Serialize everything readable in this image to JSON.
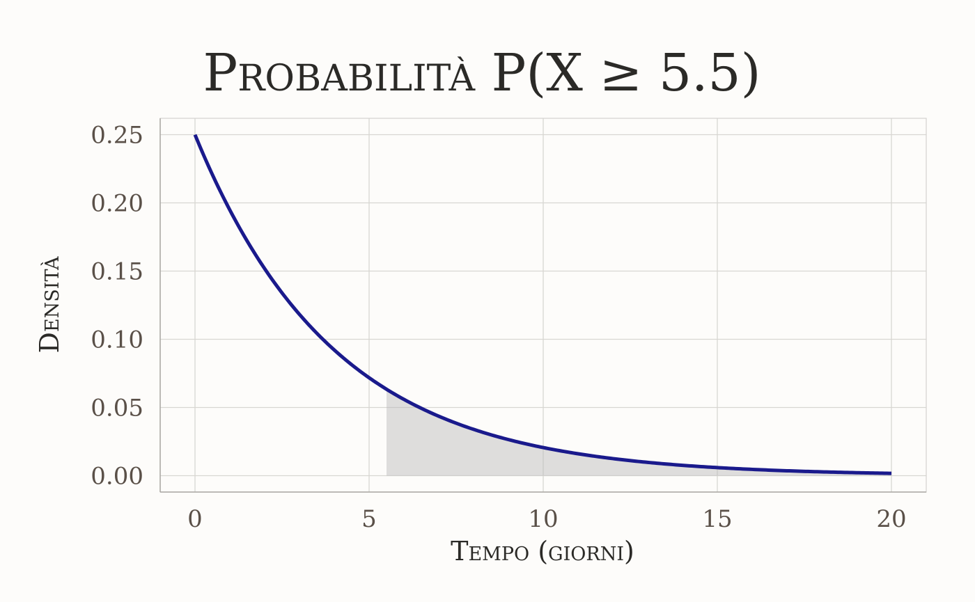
{
  "chart_data": {
    "type": "line",
    "title": "Probabilità P(X ≥ 5.5)",
    "xlabel": "Tempo (giorni)",
    "ylabel": "Densità",
    "xlim": [
      -1,
      21
    ],
    "ylim": [
      -0.012,
      0.262
    ],
    "x_ticks": [
      0,
      5,
      10,
      15,
      20
    ],
    "x_tick_labels": [
      "0",
      "5",
      "10",
      "15",
      "20"
    ],
    "y_ticks": [
      0.0,
      0.05,
      0.1,
      0.15,
      0.2,
      0.25
    ],
    "y_tick_labels": [
      "0.00",
      "0.05",
      "0.10",
      "0.15",
      "0.20",
      "0.25"
    ],
    "grid": true,
    "legend": "none",
    "series": [
      {
        "x": [
          0,
          1,
          2,
          3,
          4,
          5,
          5.5,
          6,
          7,
          8,
          9,
          10,
          11,
          12,
          13,
          14,
          15,
          16,
          17,
          18,
          19,
          20
        ],
        "values": [
          0.25,
          0.195,
          0.152,
          0.118,
          0.092,
          0.0716,
          0.0632,
          0.0558,
          0.0435,
          0.0338,
          0.0263,
          0.0205,
          0.016,
          0.0124,
          0.0097,
          0.0075,
          0.0059,
          0.0046,
          0.0036,
          0.0028,
          0.0022,
          0.0017
        ]
      }
    ],
    "shaded_region": {
      "x_start": 5.5,
      "x_end": 20
    },
    "colors": {
      "curve": "#1a1a8c",
      "shade": "#b7b7b7"
    }
  }
}
